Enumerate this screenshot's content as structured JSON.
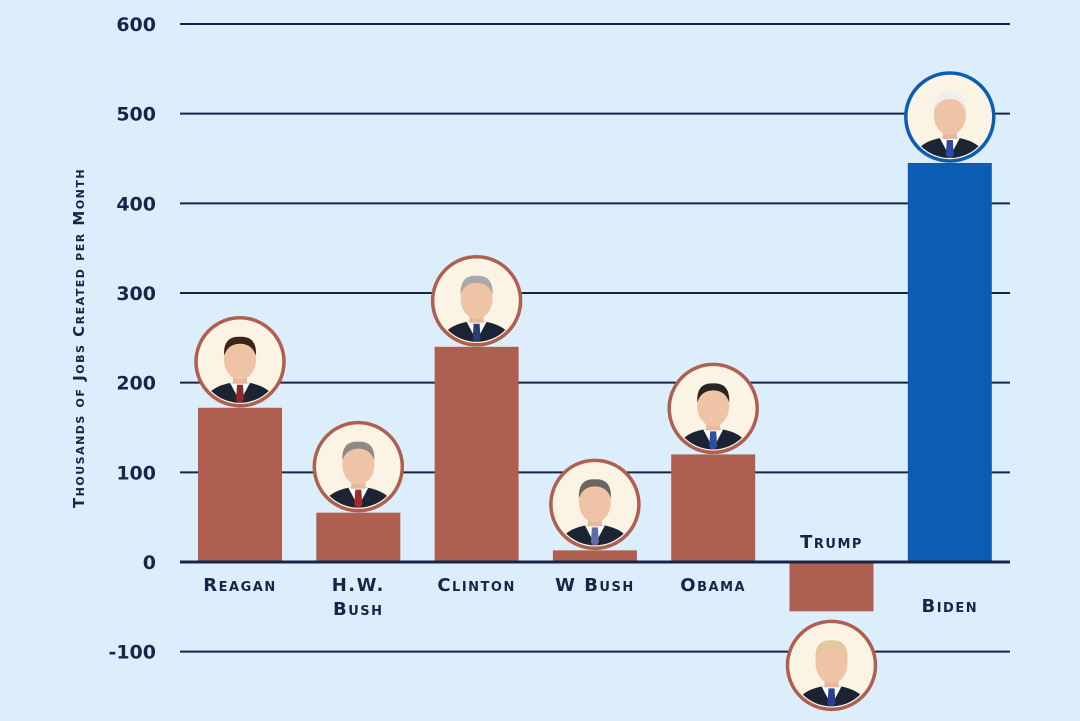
{
  "chart_data": {
    "type": "bar",
    "ylabel": "Thousands of Jobs Created per Month",
    "ylim": [
      -100,
      600
    ],
    "yticks": [
      600,
      500,
      400,
      300,
      200,
      100,
      0,
      -100
    ],
    "grid": true,
    "categories": [
      "Reagan",
      "H.W. Bush",
      "Clinton",
      "W Bush",
      "Obama",
      "Trump",
      "Biden"
    ],
    "values": [
      172,
      55,
      240,
      13,
      120,
      -55,
      445
    ],
    "colors": [
      "#ae5f4f",
      "#ae5f4f",
      "#ae5f4f",
      "#ae5f4f",
      "#ae5f4f",
      "#ae5f4f",
      "#0b5db4"
    ],
    "portraits": [
      "reagan-portrait",
      "hw-bush-portrait",
      "clinton-portrait",
      "w-bush-portrait",
      "obama-portrait",
      "trump-portrait",
      "biden-portrait"
    ]
  },
  "colors": {
    "background": "#dcedfb",
    "gridline": "#16264a",
    "text": "#16264a",
    "republican_bar": "#ae5f4f",
    "highlight_bar": "#0b5db4"
  }
}
